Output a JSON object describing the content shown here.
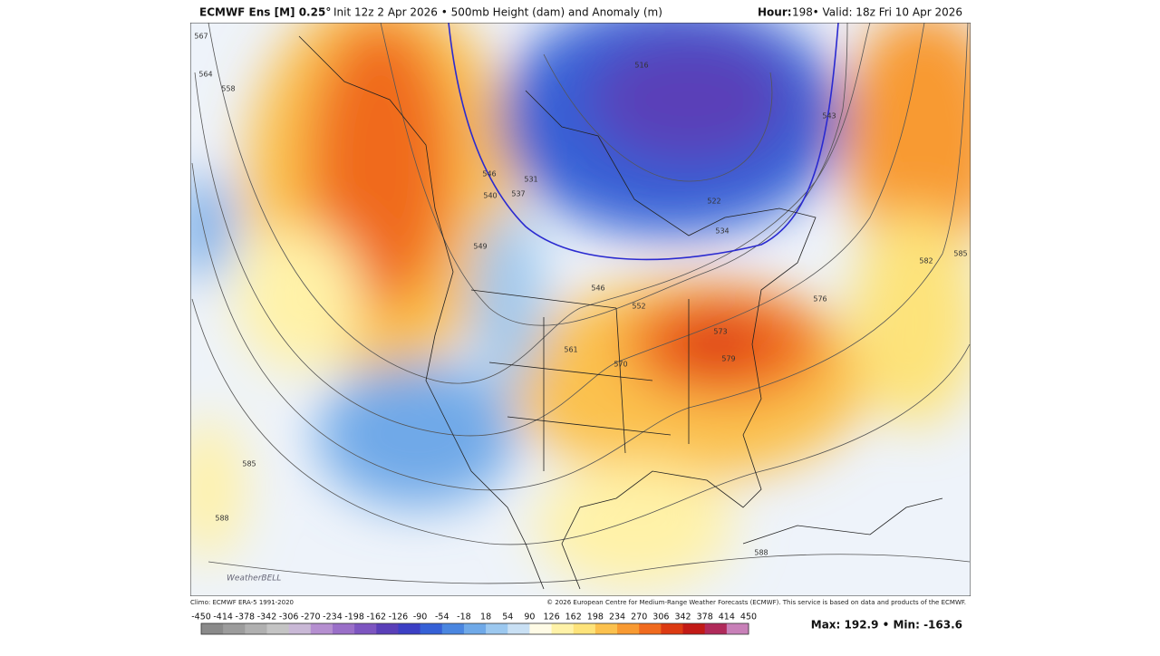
{
  "header": {
    "model": "ECMWF Ens [M] 0.25°",
    "init": "Init 12z 2 Apr 2026 • 500mb Height (dam) and Anomaly (m)",
    "hour_label": "Hour:",
    "hour": 198,
    "valid": "• Valid: 18z Fri 10 Apr 2026"
  },
  "map": {
    "contour_labels": [
      567,
      564,
      558,
      546,
      540,
      537,
      531,
      516,
      522,
      543,
      534,
      546,
      549,
      552,
      561,
      570,
      573,
      579,
      576,
      582,
      585,
      585,
      588,
      588
    ],
    "logo": "WeatherBELL"
  },
  "footer": {
    "climo": "Climo: ECMWF ERA-5 1991-2020",
    "copyright": "© 2026 European Centre for Medium-Range Weather Forecasts (ECMWF). This service is based on data and products of the ECMWF."
  },
  "colorbar": {
    "ticks": [
      -450,
      -414,
      -378,
      -342,
      -306,
      -270,
      -234,
      -198,
      -162,
      -126,
      -90,
      -54,
      -18,
      18,
      54,
      90,
      126,
      162,
      198,
      234,
      270,
      306,
      342,
      378,
      414,
      450
    ],
    "colors": [
      "#8a8a8a",
      "#9c9c9c",
      "#b0b0b0",
      "#c4c4c4",
      "#c9b8d6",
      "#b58fd0",
      "#9a6fc8",
      "#7d55c0",
      "#5a3fb8",
      "#3c3fc4",
      "#3560d6",
      "#4a86e0",
      "#6fa9e8",
      "#9cc8ef",
      "#c9e0f4",
      "#fffbe6",
      "#fff2a8",
      "#fde37a",
      "#fbc14e",
      "#f89a32",
      "#f06a1e",
      "#dc3a12",
      "#c21a16",
      "#b02a5a",
      "#c880b8"
    ]
  },
  "stats": {
    "text": "Max: 192.9 • Min: -163.6"
  }
}
